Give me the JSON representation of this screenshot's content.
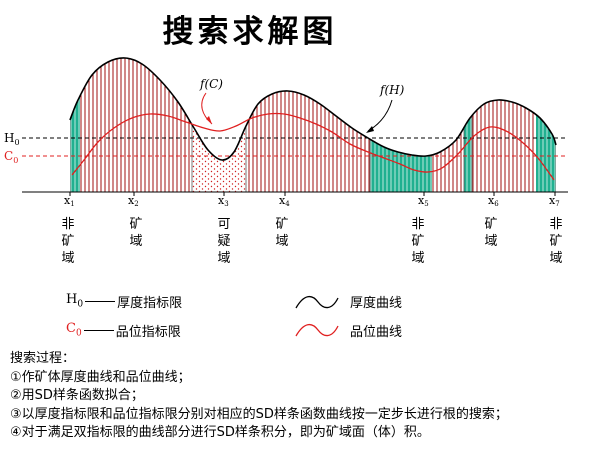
{
  "title": "搜索求解图",
  "curve_labels": {
    "fC": "f(C)",
    "fH": "f(H)"
  },
  "threshold_labels": {
    "H0": "H",
    "C0": "C",
    "sub": "0"
  },
  "x_ticks": [
    "x1",
    "x2",
    "x3",
    "x4",
    "x5",
    "x6",
    "x7"
  ],
  "zones": [
    {
      "label": "非矿域"
    },
    {
      "label": "矿域"
    },
    {
      "label": "可疑域"
    },
    {
      "label": "矿域"
    },
    {
      "label": "非矿域"
    },
    {
      "label": "矿域"
    },
    {
      "label": "非矿域"
    }
  ],
  "legend": {
    "h0_text": "厚度指标限",
    "c0_text": "品位指标限",
    "thickness_curve_text": "厚度曲线",
    "grade_curve_text": "品位曲线"
  },
  "process": {
    "heading": "搜索过程：",
    "steps": [
      "①作矿体厚度曲线和品位曲线；",
      "②用SD样条函数拟合；",
      "③以厚度指标限和品位指标限分别对相应的SD样条函数曲线按一定步长进行根的搜索；",
      "④对于满足双指标限的曲线部分进行SD样条积分，即为矿域面（体）积。"
    ]
  },
  "colors": {
    "ore_hatch": "#a01010",
    "waste_fill": "#20b090",
    "doubt_dots": "#d02020",
    "grade_curve": "#e02020",
    "c0_line": "#e02020",
    "h0_line": "#000000"
  }
}
